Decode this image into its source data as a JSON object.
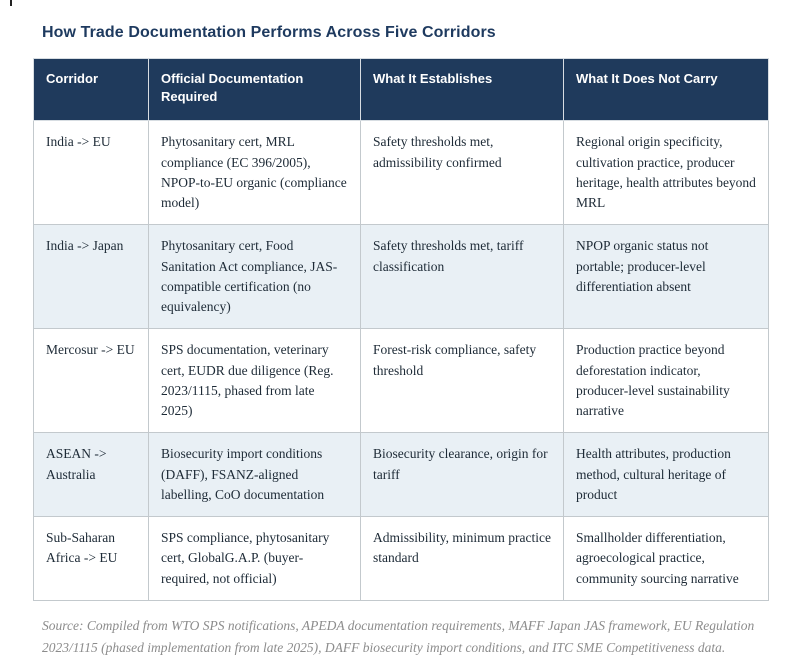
{
  "title": "How Trade Documentation Performs Across Five Corridors",
  "table": {
    "headers": [
      "Corridor",
      "Official Documentation Required",
      "What It Establishes",
      "What It Does Not Carry"
    ],
    "rows": [
      [
        "India -> EU",
        "Phytosanitary cert, MRL compliance (EC 396/2005), NPOP-to-EU organic (compliance model)",
        "Safety thresholds met, admissibility confirmed",
        "Regional origin specificity, cultivation practice, producer heritage, health attributes beyond MRL"
      ],
      [
        "India -> Japan",
        "Phytosanitary cert, Food Sanitation Act compliance, JAS-compatible certification (no equivalency)",
        "Safety thresholds met, tariff classification",
        "NPOP organic status not portable; producer-level differentiation absent"
      ],
      [
        "Mercosur -> EU",
        "SPS documentation, veterinary cert, EUDR due diligence (Reg. 2023/1115, phased from late 2025)",
        "Forest-risk compliance, safety threshold",
        "Production practice beyond deforestation indicator, producer-level sustainability narrative"
      ],
      [
        "ASEAN -> Australia",
        "Biosecurity import conditions (DAFF), FSANZ-aligned labelling, CoO documentation",
        "Biosecurity clearance, origin for tariff",
        "Health attributes, production method, cultural heritage of product"
      ],
      [
        "Sub-Saharan Africa -> EU",
        "SPS compliance, phytosanitary cert, GlobalG.A.P. (buyer-required, not official)",
        "Admissibility, minimum practice standard",
        "Smallholder differentiation, agroecological practice, community sourcing narrative"
      ]
    ]
  },
  "source_note": "Source: Compiled from WTO SPS notifications, APEDA documentation requirements, MAFF Japan JAS framework, EU Regulation 2023/1115 (phased implementation from late 2025), DAFF biosecurity import conditions, and ITC SME Competitiveness data.",
  "colors": {
    "header_background": "#1f3a5c",
    "header_text": "#ffffff",
    "title_text": "#1e3a5f",
    "row_stripe": "#e9f0f5",
    "body_text": "#1d2a36",
    "border": "#c3c9cd",
    "source_text": "#8c8c8c"
  }
}
